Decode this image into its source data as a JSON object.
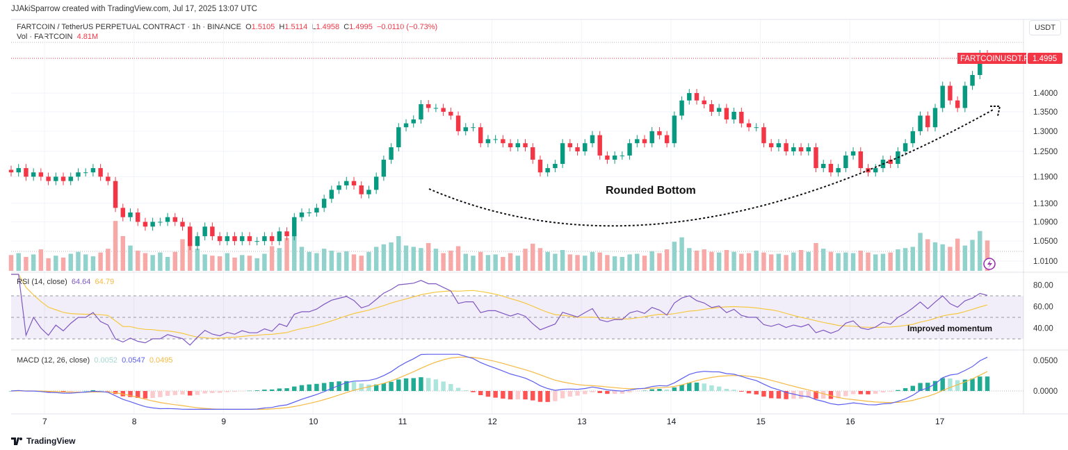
{
  "credit": "JJAkiSparrow created with TradingView.com, Jul 17, 2025 13:07 UTC",
  "symbol": {
    "title": "FARTCOIN / TetherUS PERPETUAL CONTRACT · 1h · BINANCE",
    "o_label": "O",
    "o": "1.5105",
    "h_label": "H",
    "h": "1.5114",
    "l_label": "L",
    "l": "1.4958",
    "c_label": "C",
    "c": "1.4995",
    "change": "−0.0110 (−0.73%)",
    "vol_label": "Vol · FARTCOIN",
    "vol": "4.81M",
    "ticker_tag": "FARTCOINUSDT.P",
    "last_price": "1.4995"
  },
  "currency_button": "USDT",
  "rsi": {
    "label": "RSI (14, close)",
    "value": "64.64",
    "ma_value": "64.79",
    "ticks": [
      "80.00",
      "60.00",
      "40.00"
    ],
    "annotation": "Improved momentum"
  },
  "macd": {
    "label": "MACD (12, 26, close)",
    "hist": "0.0052",
    "macd": "0.0547",
    "signal": "0.0495",
    "ticks": [
      "0.0500",
      "0.0000"
    ]
  },
  "annotation_main": "Rounded Bottom",
  "footer": "TradingView",
  "colors": {
    "up": "#089981",
    "down": "#f23645",
    "rsi": "#7e57c2",
    "rsi_ma": "#f5c842",
    "macd": "#5b5ef0",
    "signal": "#f5b942"
  },
  "chart_data": {
    "type": "candlestick",
    "interval": "1h",
    "price_scale": "log",
    "price_ticks": [
      "1.4000",
      "1.3500",
      "1.3000",
      "1.2500",
      "1.1900",
      "1.1300",
      "1.0900",
      "1.0500",
      "1.0100"
    ],
    "x_ticks": [
      "7",
      "8",
      "9",
      "10",
      "11",
      "12",
      "13",
      "14",
      "15",
      "16",
      "17"
    ],
    "closes": [
      1.2,
      1.21,
      1.19,
      1.2,
      1.19,
      1.18,
      1.19,
      1.18,
      1.19,
      1.2,
      1.2,
      1.21,
      1.19,
      1.18,
      1.12,
      1.1,
      1.11,
      1.09,
      1.08,
      1.09,
      1.09,
      1.1,
      1.09,
      1.08,
      1.04,
      1.06,
      1.08,
      1.06,
      1.05,
      1.06,
      1.05,
      1.06,
      1.05,
      1.05,
      1.06,
      1.05,
      1.07,
      1.06,
      1.1,
      1.11,
      1.11,
      1.12,
      1.14,
      1.16,
      1.17,
      1.18,
      1.17,
      1.15,
      1.16,
      1.19,
      1.23,
      1.26,
      1.31,
      1.32,
      1.33,
      1.37,
      1.36,
      1.36,
      1.35,
      1.34,
      1.3,
      1.31,
      1.31,
      1.27,
      1.28,
      1.28,
      1.27,
      1.26,
      1.27,
      1.26,
      1.23,
      1.2,
      1.21,
      1.22,
      1.27,
      1.26,
      1.25,
      1.27,
      1.29,
      1.24,
      1.23,
      1.24,
      1.24,
      1.27,
      1.28,
      1.27,
      1.3,
      1.29,
      1.27,
      1.34,
      1.38,
      1.4,
      1.38,
      1.37,
      1.35,
      1.36,
      1.33,
      1.35,
      1.32,
      1.31,
      1.31,
      1.27,
      1.26,
      1.27,
      1.25,
      1.26,
      1.25,
      1.26,
      1.21,
      1.22,
      1.2,
      1.21,
      1.24,
      1.25,
      1.21,
      1.2,
      1.21,
      1.23,
      1.22,
      1.25,
      1.27,
      1.3,
      1.34,
      1.31,
      1.36,
      1.42,
      1.38,
      1.36,
      1.42,
      1.45,
      1.51,
      1.4995
    ],
    "volumes_m": [
      2.5,
      2.8,
      2.2,
      2.6,
      3.4,
      2.0,
      2.4,
      2.1,
      2.7,
      3.0,
      2.6,
      2.3,
      2.9,
      3.5,
      7.9,
      5.5,
      4.0,
      3.2,
      2.8,
      2.5,
      2.9,
      2.2,
      3.0,
      5.0,
      4.8,
      3.5,
      2.6,
      2.4,
      2.3,
      2.8,
      2.1,
      2.5,
      2.4,
      2.0,
      2.7,
      3.9,
      3.6,
      5.2,
      5.8,
      3.8,
      3.0,
      2.8,
      3.5,
      3.2,
      2.9,
      3.1,
      2.6,
      2.4,
      3.0,
      3.8,
      4.2,
      4.5,
      5.5,
      4.0,
      3.8,
      3.6,
      4.4,
      3.5,
      2.8,
      3.2,
      3.9,
      2.7,
      2.4,
      3.0,
      2.5,
      2.6,
      2.2,
      2.8,
      2.4,
      3.5,
      4.3,
      3.6,
      3.0,
      2.7,
      3.3,
      2.6,
      2.5,
      2.4,
      3.0,
      2.9,
      2.5,
      2.3,
      2.2,
      2.6,
      2.7,
      2.4,
      3.1,
      2.8,
      3.4,
      4.6,
      5.3,
      3.6,
      3.2,
      3.4,
      3.0,
      2.9,
      3.3,
      3.0,
      2.7,
      2.8,
      3.2,
      2.9,
      2.6,
      2.7,
      2.5,
      2.9,
      3.3,
      3.0,
      4.4,
      3.5,
      3.0,
      2.8,
      2.9,
      2.8,
      3.2,
      2.9,
      2.6,
      2.7,
      2.9,
      3.4,
      3.6,
      3.8,
      6.0,
      5.0,
      4.5,
      4.2,
      3.8,
      5.1,
      4.0,
      4.9,
      6.3,
      4.81
    ],
    "rsi_levels": [
      70,
      50,
      30
    ],
    "grid": true
  }
}
